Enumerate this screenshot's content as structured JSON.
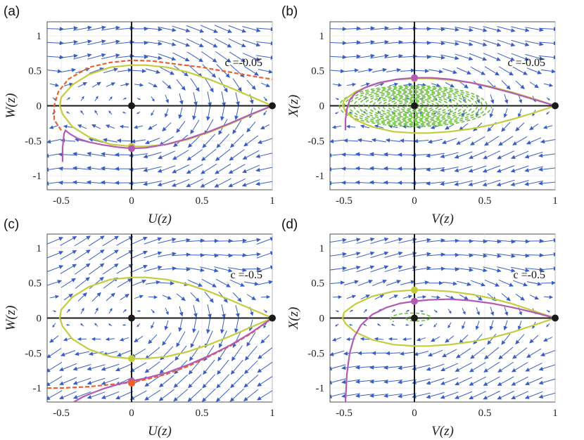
{
  "chart_data": [
    {
      "type": "line",
      "panel_label": "(a)",
      "xlabel": "U(z)",
      "ylabel": "W(z)",
      "xlim": [
        -0.6,
        1
      ],
      "ylim": [
        -1.2,
        1.2
      ],
      "xticks": [
        "-0.5",
        "0",
        "0.5",
        "1"
      ],
      "yticks": [
        "-1",
        "-0.5",
        "0",
        "0.5",
        "1"
      ],
      "annotation": "c =-0.05",
      "field": "a",
      "series": [
        {
          "name": "closed-orbit",
          "color": "#c3cd3c",
          "style": "solid",
          "x": [
            1.0,
            0.85,
            0.7,
            0.55,
            0.4,
            0.25,
            0.1,
            0.0,
            -0.15,
            -0.3,
            -0.42,
            -0.5,
            -0.51,
            -0.49,
            -0.42,
            -0.3,
            -0.15,
            0.0,
            0.1,
            0.25,
            0.4,
            0.55,
            0.7,
            0.85,
            1.0
          ],
          "y": [
            0.0,
            0.13,
            0.26,
            0.38,
            0.48,
            0.55,
            0.58,
            0.58,
            0.55,
            0.45,
            0.3,
            0.12,
            0.0,
            -0.12,
            -0.3,
            -0.45,
            -0.55,
            -0.58,
            -0.58,
            -0.55,
            -0.48,
            -0.38,
            -0.26,
            -0.13,
            0.0
          ]
        },
        {
          "name": "dashed-trajectory",
          "color": "#e8622a",
          "style": "dashed",
          "x": [
            -0.5,
            -0.55,
            -0.55,
            -0.52,
            -0.45,
            -0.3,
            -0.15,
            0.0,
            0.15,
            0.3,
            0.5,
            0.7,
            0.9,
            1.0
          ],
          "y": [
            -0.35,
            -0.2,
            0.0,
            0.2,
            0.38,
            0.55,
            0.62,
            0.65,
            0.64,
            0.6,
            0.55,
            0.48,
            0.41,
            0.38
          ]
        },
        {
          "name": "trajectory",
          "color": "#b35ab5",
          "style": "solid",
          "x": [
            -0.49,
            -0.49,
            -0.48,
            -0.47,
            -0.44,
            -0.38,
            -0.3,
            -0.2,
            -0.1,
            0.0,
            0.1,
            0.25,
            0.4,
            0.55,
            0.7,
            0.85,
            1.0
          ],
          "y": [
            -0.8,
            -0.6,
            -0.4,
            -0.35,
            -0.4,
            -0.47,
            -0.52,
            -0.56,
            -0.59,
            -0.61,
            -0.6,
            -0.55,
            -0.47,
            -0.37,
            -0.25,
            -0.12,
            0.0
          ]
        }
      ],
      "points": [
        {
          "x": 0,
          "y": 0,
          "color": "#1a1a1a"
        },
        {
          "x": 1,
          "y": 0,
          "color": "#1a1a1a"
        },
        {
          "x": 0,
          "y": -0.58,
          "color": "#c3cd3c"
        },
        {
          "x": 0,
          "y": -0.61,
          "color": "#b35ab5"
        }
      ]
    },
    {
      "type": "line",
      "panel_label": "(b)",
      "xlabel": "V(z)",
      "ylabel": "X(z)",
      "xlim": [
        -0.6,
        1
      ],
      "ylim": [
        -1.2,
        1.2
      ],
      "xticks": [
        "-0.5",
        "0",
        "0.5",
        "1"
      ],
      "yticks": [
        "-1",
        "-0.5",
        "0",
        "0.5",
        "1"
      ],
      "annotation": "c =-0.05",
      "field": "b",
      "spiral": {
        "color": "#6cc13e",
        "center": [
          0,
          0
        ],
        "rx_max": 0.55,
        "ry_max": 0.3,
        "turns": 16
      },
      "series": [
        {
          "name": "closed-orbit",
          "color": "#c3cd3c",
          "style": "solid",
          "x": [
            1.0,
            0.85,
            0.7,
            0.55,
            0.4,
            0.25,
            0.1,
            0.0,
            -0.15,
            -0.3,
            -0.42,
            -0.5,
            -0.51,
            -0.49,
            -0.42,
            -0.3,
            -0.15,
            0.0,
            0.1,
            0.25,
            0.4,
            0.55,
            0.7,
            0.85,
            1.0
          ],
          "y": [
            0.0,
            0.1,
            0.19,
            0.27,
            0.33,
            0.37,
            0.39,
            0.39,
            0.37,
            0.3,
            0.2,
            0.08,
            0.0,
            -0.08,
            -0.2,
            -0.3,
            -0.37,
            -0.39,
            -0.39,
            -0.37,
            -0.33,
            -0.27,
            -0.19,
            -0.1,
            0.0
          ]
        },
        {
          "name": "trajectory",
          "color": "#b35ab5",
          "style": "solid",
          "x": [
            -0.49,
            -0.49,
            -0.48,
            -0.46,
            -0.42,
            -0.35,
            -0.25,
            -0.12,
            0.0,
            0.12,
            0.25,
            0.4,
            0.55,
            0.7,
            0.85,
            1.0
          ],
          "y": [
            -0.35,
            -0.2,
            -0.05,
            0.08,
            0.18,
            0.26,
            0.33,
            0.38,
            0.4,
            0.4,
            0.38,
            0.33,
            0.26,
            0.18,
            0.09,
            0.0
          ]
        }
      ],
      "points": [
        {
          "x": 0,
          "y": 0,
          "color": "#1a1a1a"
        },
        {
          "x": 1,
          "y": 0,
          "color": "#1a1a1a"
        },
        {
          "x": 0,
          "y": 0.39,
          "color": "#c3cd3c"
        },
        {
          "x": 0,
          "y": 0.4,
          "color": "#b35ab5"
        }
      ]
    },
    {
      "type": "line",
      "panel_label": "(c)",
      "xlabel": "U(z)",
      "ylabel": "W(z)",
      "xlim": [
        -0.6,
        1
      ],
      "ylim": [
        -1.2,
        1.2
      ],
      "xticks": [
        "-0.5",
        "0",
        "0.5",
        "1"
      ],
      "yticks": [
        "-1",
        "-0.5",
        "0",
        "0.5",
        "1"
      ],
      "annotation": "c =-0.5",
      "field": "c",
      "series": [
        {
          "name": "closed-orbit",
          "color": "#c3cd3c",
          "style": "solid",
          "x": [
            1.0,
            0.85,
            0.7,
            0.55,
            0.4,
            0.25,
            0.1,
            0.0,
            -0.15,
            -0.3,
            -0.42,
            -0.5,
            -0.51,
            -0.49,
            -0.42,
            -0.3,
            -0.15,
            0.0,
            0.1,
            0.25,
            0.4,
            0.55,
            0.7,
            0.85,
            1.0
          ],
          "y": [
            0.0,
            0.13,
            0.26,
            0.38,
            0.48,
            0.55,
            0.58,
            0.58,
            0.55,
            0.45,
            0.3,
            0.12,
            0.0,
            -0.12,
            -0.3,
            -0.45,
            -0.55,
            -0.58,
            -0.58,
            -0.55,
            -0.48,
            -0.38,
            -0.26,
            -0.13,
            0.0
          ]
        },
        {
          "name": "dashed-trajectory",
          "color": "#e8622a",
          "style": "dashed",
          "x": [
            -0.6,
            -0.5,
            -0.4,
            -0.3,
            -0.2,
            -0.1,
            0.0,
            0.1,
            0.25,
            0.4,
            0.55,
            0.7,
            0.85,
            1.0
          ],
          "y": [
            -1.0,
            -1.0,
            -0.99,
            -0.98,
            -0.96,
            -0.94,
            -0.92,
            -0.88,
            -0.8,
            -0.69,
            -0.55,
            -0.4,
            -0.22,
            0.0
          ]
        },
        {
          "name": "trajectory",
          "color": "#b35ab5",
          "style": "solid",
          "x": [
            -0.41,
            -0.35,
            -0.28,
            -0.2,
            -0.1,
            0.0,
            0.1,
            0.25,
            0.4,
            0.55,
            0.7,
            0.85,
            1.0
          ],
          "y": [
            -1.2,
            -1.13,
            -1.07,
            -1.01,
            -0.95,
            -0.9,
            -0.86,
            -0.78,
            -0.67,
            -0.54,
            -0.39,
            -0.21,
            0.0
          ]
        }
      ],
      "points": [
        {
          "x": 0,
          "y": 0,
          "color": "#1a1a1a"
        },
        {
          "x": 1,
          "y": 0,
          "color": "#1a1a1a"
        },
        {
          "x": 0,
          "y": -0.58,
          "color": "#c3cd3c"
        },
        {
          "x": 0,
          "y": -0.9,
          "color": "#b35ab5"
        },
        {
          "x": 0,
          "y": -0.93,
          "color": "#e8622a"
        }
      ]
    },
    {
      "type": "line",
      "panel_label": "(d)",
      "xlabel": "V(z)",
      "ylabel": "X(z)",
      "xlim": [
        -0.6,
        1
      ],
      "ylim": [
        -1.2,
        1.2
      ],
      "xticks": [
        "-0.5",
        "0",
        "0.5",
        "1"
      ],
      "yticks": [
        "-1",
        "-0.5",
        "0",
        "0.5",
        "1"
      ],
      "annotation": "c =-0.5",
      "field": "d",
      "spiral": {
        "color": "#6cc13e",
        "center": [
          0,
          0
        ],
        "rx_max": 0.18,
        "ry_max": 0.09,
        "turns": 1.6
      },
      "series": [
        {
          "name": "closed-orbit",
          "color": "#c3cd3c",
          "style": "solid",
          "x": [
            1.0,
            0.85,
            0.7,
            0.55,
            0.4,
            0.25,
            0.1,
            0.0,
            -0.15,
            -0.3,
            -0.42,
            -0.5,
            -0.51,
            -0.49,
            -0.42,
            -0.3,
            -0.15,
            0.0,
            0.1,
            0.25,
            0.4,
            0.55,
            0.7,
            0.85,
            1.0
          ],
          "y": [
            0.0,
            0.1,
            0.2,
            0.28,
            0.34,
            0.38,
            0.4,
            0.4,
            0.38,
            0.31,
            0.2,
            0.08,
            0.0,
            -0.08,
            -0.2,
            -0.31,
            -0.38,
            -0.4,
            -0.4,
            -0.38,
            -0.34,
            -0.28,
            -0.2,
            -0.1,
            0.0
          ]
        },
        {
          "name": "trajectory",
          "color": "#b35ab5",
          "style": "solid",
          "x": [
            -0.49,
            -0.48,
            -0.46,
            -0.43,
            -0.38,
            -0.3,
            -0.2,
            -0.1,
            0.0,
            0.1,
            0.25,
            0.4,
            0.55,
            0.7,
            0.85,
            1.0
          ],
          "y": [
            -1.2,
            -0.8,
            -0.5,
            -0.28,
            -0.1,
            0.05,
            0.15,
            0.21,
            0.24,
            0.26,
            0.27,
            0.25,
            0.21,
            0.15,
            0.08,
            0.0
          ]
        }
      ],
      "points": [
        {
          "x": 0,
          "y": 0,
          "color": "#1a1a1a"
        },
        {
          "x": 1,
          "y": 0,
          "color": "#1a1a1a"
        },
        {
          "x": 0,
          "y": 0.4,
          "color": "#c3cd3c"
        },
        {
          "x": 0,
          "y": 0.24,
          "color": "#b35ab5"
        }
      ]
    }
  ],
  "colors": {
    "arrow": "#3a5fc4",
    "axis": "#1a1a1a",
    "background": "#ffffff"
  }
}
